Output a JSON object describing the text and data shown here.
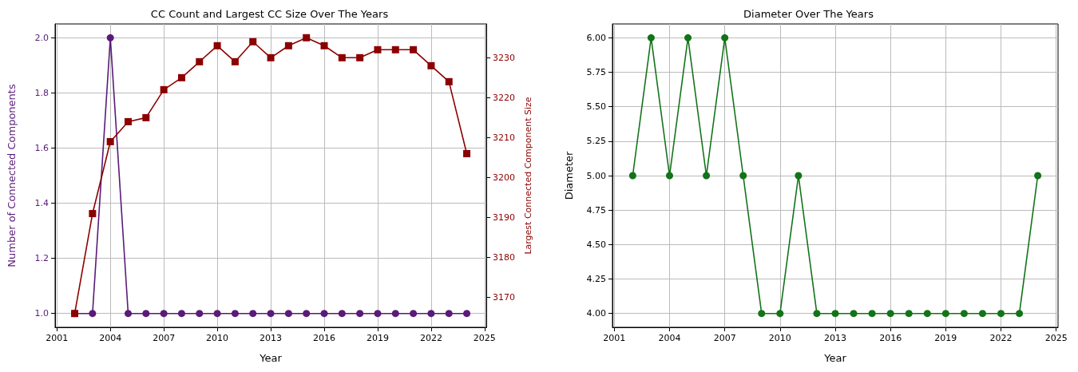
{
  "chart_data": [
    {
      "type": "line",
      "title": "CC Count and Largest CC Size Over The Years",
      "xlabel": "Year",
      "ylabel": "Number of Connected Components",
      "y2label": "Largest Connected Component Size",
      "x": [
        2002,
        2003,
        2004,
        2005,
        2006,
        2007,
        2008,
        2009,
        2010,
        2011,
        2012,
        2013,
        2014,
        2015,
        2016,
        2017,
        2018,
        2019,
        2020,
        2021,
        2022,
        2023,
        2024
      ],
      "series": [
        {
          "color": "#5a1a78",
          "marker": "circle",
          "values": [
            1,
            1,
            2,
            1,
            1,
            1,
            1,
            1,
            1,
            1,
            1,
            1,
            1,
            1,
            1,
            1,
            1,
            1,
            1,
            1,
            1,
            1,
            1
          ]
        },
        {
          "color": "#8b0000",
          "marker": "square",
          "axis": "y2",
          "values": [
            3166,
            3191,
            3209,
            3214,
            3215,
            3222,
            3225,
            3229,
            3233,
            3229,
            3234,
            3230,
            3233,
            3235,
            3233,
            3230,
            3230,
            3232,
            3232,
            3232,
            3228,
            3224,
            3206
          ]
        }
      ],
      "xlim": [
        2000.9,
        2025.1
      ],
      "xticks": [
        2001,
        2004,
        2007,
        2010,
        2013,
        2016,
        2019,
        2022,
        2025
      ],
      "ylim": [
        0.95,
        2.05
      ],
      "yticks": [
        {
          "value": 1,
          "label": "1.0"
        },
        1.2,
        1.4,
        1.6,
        1.8,
        {
          "value": 2,
          "label": "2.0"
        }
      ],
      "y2lim": [
        3162.55,
        3238.45
      ],
      "y2ticks": [
        3170,
        3180,
        3190,
        3200,
        3210,
        3220,
        3230
      ],
      "grid": true
    },
    {
      "type": "line",
      "title": "Diameter Over The Years",
      "xlabel": "Year",
      "ylabel": "Diameter",
      "x": [
        2002,
        2003,
        2004,
        2005,
        2006,
        2007,
        2008,
        2009,
        2010,
        2011,
        2012,
        2013,
        2014,
        2015,
        2016,
        2017,
        2018,
        2019,
        2020,
        2021,
        2022,
        2023,
        2024
      ],
      "series": [
        {
          "color": "#137319",
          "marker": "circle",
          "values": [
            5,
            6,
            5,
            6,
            5,
            6,
            5,
            4,
            4,
            5,
            4,
            4,
            4,
            4,
            4,
            4,
            4,
            4,
            4,
            4,
            4,
            4,
            5
          ]
        }
      ],
      "xlim": [
        2000.9,
        2025.1
      ],
      "xticks": [
        2001,
        2004,
        2007,
        2010,
        2013,
        2016,
        2019,
        2022,
        2025
      ],
      "ylim": [
        3.9,
        6.1
      ],
      "yticks": [
        {
          "value": 4,
          "label": "4.00"
        },
        4.25,
        {
          "value": 4.5,
          "label": "4.50"
        },
        4.75,
        {
          "value": 5,
          "label": "5.00"
        },
        5.25,
        {
          "value": 5.5,
          "label": "5.50"
        },
        5.75,
        {
          "value": 6,
          "label": "6.00"
        }
      ],
      "grid": true
    }
  ]
}
